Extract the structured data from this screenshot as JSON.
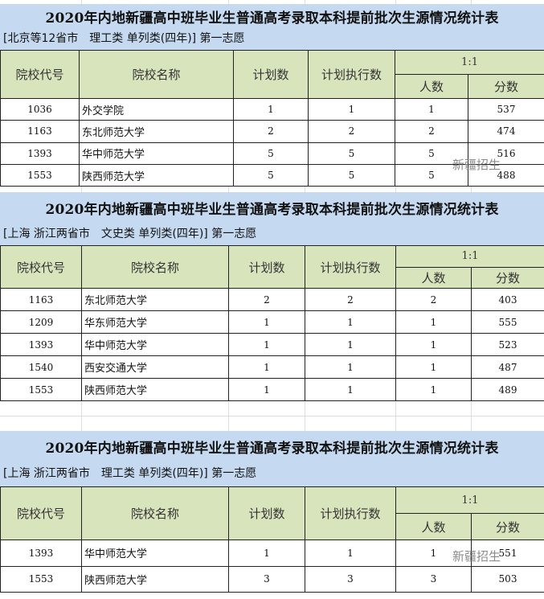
{
  "headers": {
    "code": "院校代号",
    "name": "院校名称",
    "plan": "计划数",
    "executed": "计划执行数",
    "ratio": "1:1",
    "count": "人数",
    "score": "分数"
  },
  "watermark": "新疆招生",
  "colors": {
    "title_band": "#c5d9f1",
    "header_fill": "#d8e4bc"
  },
  "sections": [
    {
      "title": "2020年内地新疆高中班毕业生普通高考录取本科提前批次生源情况统计表",
      "subtitle": "[北京等12省市　理工类 单列类(四年)] 第一志愿",
      "rows": [
        {
          "code": "1036",
          "name": "外交学院",
          "plan": "1",
          "executed": "1",
          "count": "1",
          "score": "537"
        },
        {
          "code": "1163",
          "name": "东北师范大学",
          "plan": "2",
          "executed": "2",
          "count": "2",
          "score": "474"
        },
        {
          "code": "1393",
          "name": "华中师范大学",
          "plan": "5",
          "executed": "5",
          "count": "5",
          "score": "516"
        },
        {
          "code": "1553",
          "name": "陕西师范大学",
          "plan": "5",
          "executed": "5",
          "count": "5",
          "score": "488"
        }
      ]
    },
    {
      "title": "2020年内地新疆高中班毕业生普通高考录取本科提前批次生源情况统计表",
      "subtitle": "[上海 浙江两省市　文史类 单列类(四年)] 第一志愿",
      "rows": [
        {
          "code": "1163",
          "name": "东北师范大学",
          "plan": "2",
          "executed": "2",
          "count": "2",
          "score": "403"
        },
        {
          "code": "1209",
          "name": "华东师范大学",
          "plan": "1",
          "executed": "1",
          "count": "1",
          "score": "555"
        },
        {
          "code": "1393",
          "name": "华中师范大学",
          "plan": "1",
          "executed": "1",
          "count": "1",
          "score": "523"
        },
        {
          "code": "1540",
          "name": "西安交通大学",
          "plan": "1",
          "executed": "1",
          "count": "1",
          "score": "487"
        },
        {
          "code": "1553",
          "name": "陕西师范大学",
          "plan": "1",
          "executed": "1",
          "count": "1",
          "score": "489"
        }
      ]
    },
    {
      "title": "2020年内地新疆高中班毕业生普通高考录取本科提前批次生源情况统计表",
      "subtitle": "[上海 浙江两省市　理工类 单列类(四年)] 第一志愿",
      "rows": [
        {
          "code": "1393",
          "name": "华中师范大学",
          "plan": "1",
          "executed": "1",
          "count": "1",
          "score": "551"
        },
        {
          "code": "1553",
          "name": "陕西师范大学",
          "plan": "3",
          "executed": "3",
          "count": "3",
          "score": "503"
        }
      ]
    }
  ]
}
